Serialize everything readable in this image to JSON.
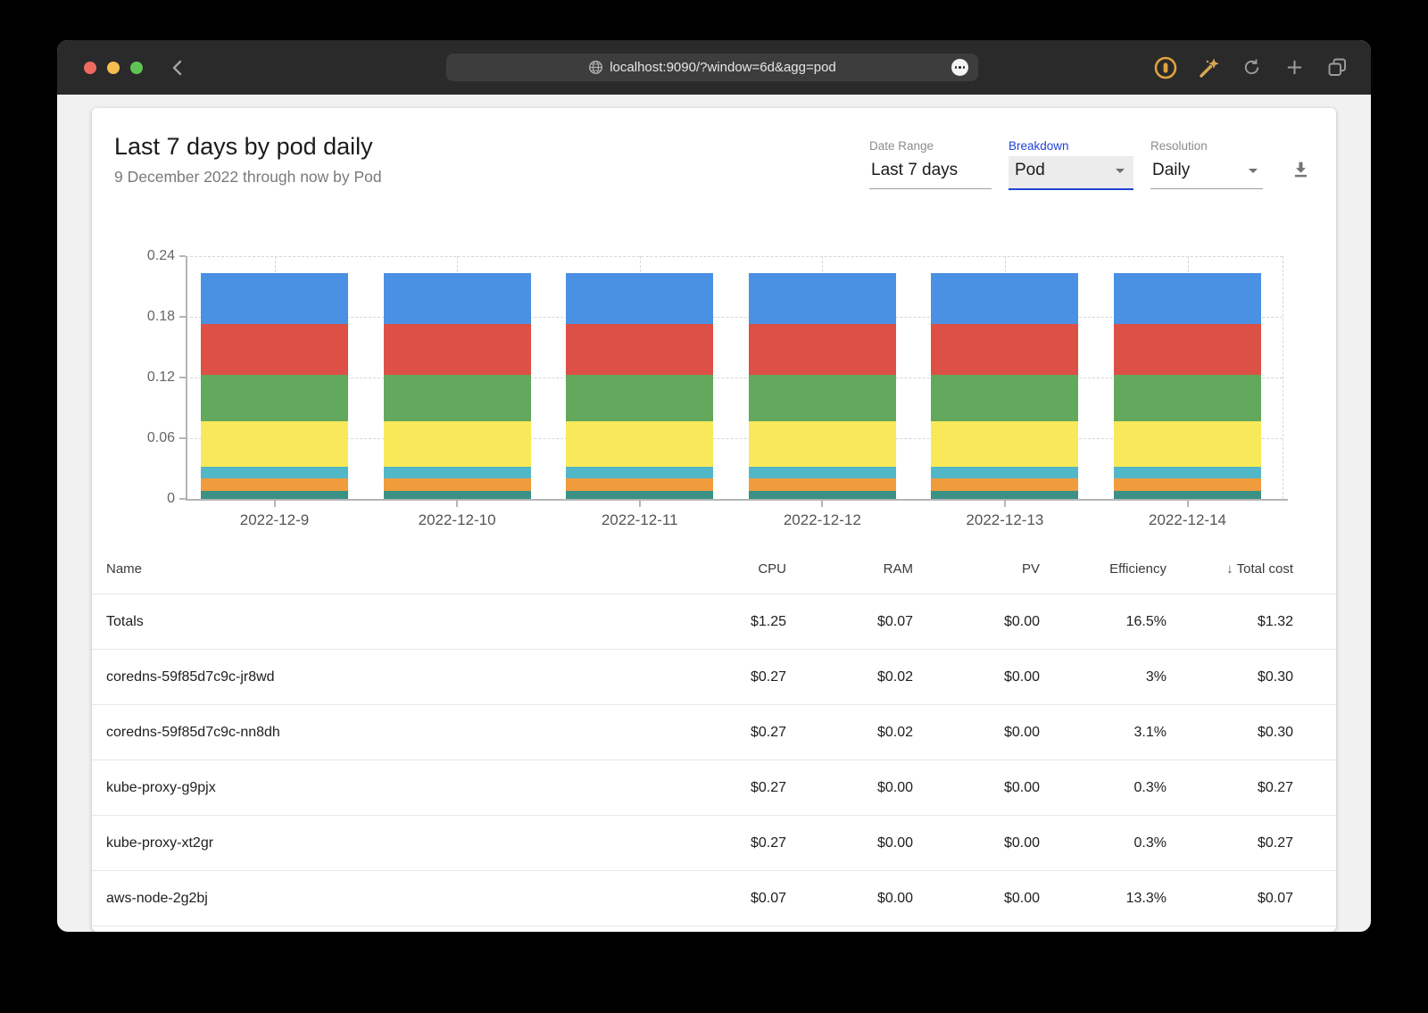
{
  "browser": {
    "url": "localhost:9090/?window=6d&agg=pod",
    "traffic_lights": [
      "#ee6a5f",
      "#f5bd4f",
      "#60c455"
    ],
    "icons": {
      "back": "chevron-left",
      "site": "globe",
      "more": "ellipsis",
      "password_manager": "1password-ring",
      "extension": "magic-wand",
      "reload": "reload-arrow",
      "new_tab": "plus",
      "tab_overview": "overlapping-squares"
    }
  },
  "header": {
    "title": "Last 7 days by pod daily",
    "subtitle": "9 December 2022 through now by Pod",
    "controls": {
      "date_range": {
        "label": "Date Range",
        "value": "Last 7 days"
      },
      "breakdown": {
        "label": "Breakdown",
        "value": "Pod"
      },
      "resolution": {
        "label": "Resolution",
        "value": "Daily"
      }
    },
    "download_icon": "download"
  },
  "chart_data": {
    "type": "bar",
    "stacked": true,
    "title": "",
    "xlabel": "",
    "ylabel": "",
    "categories": [
      "2022-12-9",
      "2022-12-10",
      "2022-12-11",
      "2022-12-12",
      "2022-12-13",
      "2022-12-14"
    ],
    "series": [
      {
        "name": "teal-segment",
        "color": "#3a9184",
        "values": [
          0.008,
          0.008,
          0.008,
          0.008,
          0.008,
          0.008
        ]
      },
      {
        "name": "orange-segment",
        "color": "#f09c3d",
        "values": [
          0.012,
          0.012,
          0.012,
          0.012,
          0.012,
          0.012
        ]
      },
      {
        "name": "cyan-segment",
        "color": "#52b7c7",
        "values": [
          0.012,
          0.012,
          0.012,
          0.012,
          0.012,
          0.012
        ]
      },
      {
        "name": "yellow-segment",
        "color": "#f8e95a",
        "values": [
          0.045,
          0.045,
          0.045,
          0.045,
          0.045,
          0.045
        ]
      },
      {
        "name": "green-segment",
        "color": "#62a95d",
        "values": [
          0.046,
          0.046,
          0.046,
          0.046,
          0.046,
          0.046
        ]
      },
      {
        "name": "red-segment",
        "color": "#dc5045",
        "values": [
          0.05,
          0.05,
          0.05,
          0.05,
          0.05,
          0.05
        ]
      },
      {
        "name": "blue-segment",
        "color": "#4a91e3",
        "values": [
          0.05,
          0.05,
          0.05,
          0.05,
          0.05,
          0.05
        ]
      }
    ],
    "ylim": [
      0,
      0.24
    ],
    "yticks": [
      0,
      0.06,
      0.12,
      0.18,
      0.24
    ],
    "grid": true,
    "legend": "none"
  },
  "table": {
    "columns": [
      "Name",
      "CPU",
      "RAM",
      "PV",
      "Efficiency",
      "Total cost"
    ],
    "sort": {
      "column": "Total cost",
      "direction": "desc",
      "icon": "↓"
    },
    "rows": [
      [
        "Totals",
        "$1.25",
        "$0.07",
        "$0.00",
        "16.5%",
        "$1.32"
      ],
      [
        "coredns-59f85d7c9c-jr8wd",
        "$0.27",
        "$0.02",
        "$0.00",
        "3%",
        "$0.30"
      ],
      [
        "coredns-59f85d7c9c-nn8dh",
        "$0.27",
        "$0.02",
        "$0.00",
        "3.1%",
        "$0.30"
      ],
      [
        "kube-proxy-g9pjx",
        "$0.27",
        "$0.00",
        "$0.00",
        "0.3%",
        "$0.27"
      ],
      [
        "kube-proxy-xt2gr",
        "$0.27",
        "$0.00",
        "$0.00",
        "0.3%",
        "$0.27"
      ],
      [
        "aws-node-2g2bj",
        "$0.07",
        "$0.00",
        "$0.00",
        "13.3%",
        "$0.07"
      ]
    ]
  }
}
